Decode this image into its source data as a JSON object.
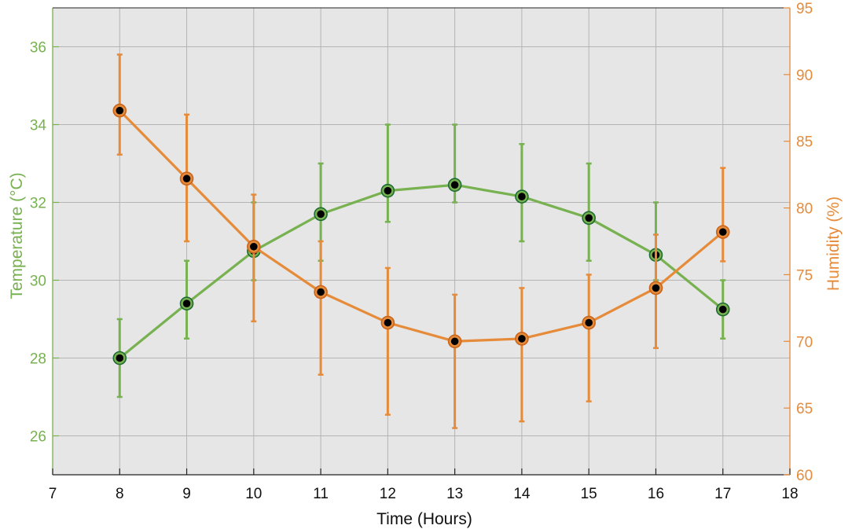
{
  "chart_data": {
    "type": "line",
    "title": "",
    "xlabel": "Time (Hours)",
    "ylabel_left": "Temperature (°C)",
    "ylabel_right": "Humidity (%)",
    "xlim": [
      7,
      18
    ],
    "ylim_left": [
      25,
      37
    ],
    "ylim_right": [
      60,
      95
    ],
    "x_ticks": [
      "7",
      "8",
      "9",
      "10",
      "11",
      "12",
      "13",
      "14",
      "15",
      "16",
      "17",
      "18"
    ],
    "y_left_ticks": [
      "26",
      "28",
      "30",
      "32",
      "34",
      "36"
    ],
    "y_right_ticks": [
      "60",
      "65",
      "70",
      "75",
      "80",
      "85",
      "90",
      "95"
    ],
    "grid": true,
    "background": "#e6e6e6",
    "series": [
      {
        "axis": "left",
        "color": "#77b150",
        "marker_edge": "#1f6b34",
        "x": [
          8,
          9,
          10,
          11,
          12,
          13,
          14,
          15,
          16,
          17
        ],
        "y": [
          28.0,
          29.4,
          30.75,
          31.7,
          32.3,
          32.45,
          32.15,
          31.6,
          30.65,
          29.25
        ],
        "err_low": [
          27.0,
          28.5,
          30.0,
          30.5,
          31.5,
          32.0,
          31.0,
          30.5,
          30.0,
          28.5
        ],
        "err_high": [
          29.0,
          30.5,
          32.0,
          33.0,
          34.0,
          34.0,
          33.5,
          33.0,
          32.0,
          30.0
        ]
      },
      {
        "axis": "right",
        "color": "#e58b3a",
        "marker_edge": "#c8641c",
        "x": [
          8,
          9,
          10,
          11,
          12,
          13,
          14,
          15,
          16,
          17
        ],
        "y": [
          87.3,
          82.2,
          77.1,
          73.7,
          71.4,
          70.0,
          70.2,
          71.4,
          74.0,
          78.2
        ],
        "err_low": [
          84.0,
          77.5,
          71.5,
          67.5,
          64.5,
          63.5,
          64.0,
          65.5,
          69.5,
          76.0
        ],
        "err_high": [
          91.5,
          87.0,
          81.0,
          77.5,
          75.5,
          73.5,
          74.0,
          75.0,
          78.0,
          83.0
        ]
      }
    ]
  }
}
